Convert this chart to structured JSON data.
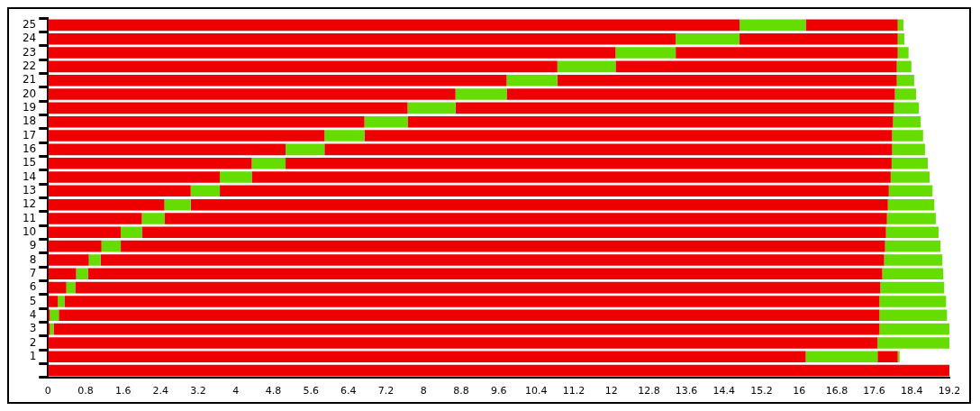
{
  "chart_data": {
    "type": "bar",
    "orientation": "horizontal",
    "stacked": true,
    "grid": false,
    "legend": false,
    "categories": [
      "25",
      "24",
      "23",
      "22",
      "21",
      "20",
      "19",
      "18",
      "17",
      "16",
      "15",
      "14",
      "13",
      "12",
      "11",
      "10",
      "9",
      "8",
      "7",
      "6",
      "5",
      "4",
      "3",
      "2",
      "1",
      null
    ],
    "series": [
      {
        "color": "#ee0000",
        "values": [
          14.73,
          13.37,
          12.09,
          10.85,
          9.77,
          8.68,
          7.66,
          6.74,
          5.89,
          5.06,
          4.34,
          3.66,
          3.04,
          2.48,
          2.0,
          1.55,
          1.14,
          0.87,
          0.6,
          0.39,
          0.21,
          0.04,
          0.04,
          17.67,
          16.14,
          19.2
        ]
      },
      {
        "color": "#66dd00",
        "values": [
          1.41,
          1.36,
          1.28,
          1.24,
          1.08,
          1.09,
          1.02,
          0.92,
          0.85,
          0.83,
          0.72,
          0.68,
          0.62,
          0.56,
          0.48,
          0.45,
          0.41,
          0.25,
          0.25,
          0.19,
          0.14,
          0.19,
          0.08,
          null,
          1.53,
          null
        ]
      },
      {
        "color": "#ee0000",
        "values": [
          1.96,
          3.37,
          4.73,
          5.99,
          7.23,
          8.27,
          9.34,
          10.34,
          11.24,
          12.09,
          12.91,
          13.61,
          14.25,
          14.85,
          15.39,
          15.85,
          16.28,
          16.69,
          16.92,
          17.15,
          17.36,
          17.48,
          17.59,
          null,
          0.43,
          null
        ]
      },
      {
        "color": "#66dd00",
        "values": [
          0.12,
          0.14,
          0.23,
          0.31,
          0.37,
          0.45,
          0.53,
          0.59,
          0.66,
          0.7,
          0.77,
          0.83,
          0.93,
          0.99,
          1.04,
          1.12,
          1.18,
          1.24,
          1.3,
          1.36,
          1.42,
          1.44,
          1.49,
          1.53,
          0.04,
          null
        ]
      }
    ],
    "xlim": [
      0,
      19.2
    ],
    "xticks": [
      0,
      0.8,
      1.6,
      2.4,
      3.2,
      4,
      4.8,
      5.6,
      6.4,
      7.2,
      8,
      8.8,
      9.6,
      10.4,
      11.2,
      12,
      12.8,
      13.6,
      14.4,
      15.2,
      16,
      16.8,
      17.6,
      18.4,
      19.2
    ]
  }
}
